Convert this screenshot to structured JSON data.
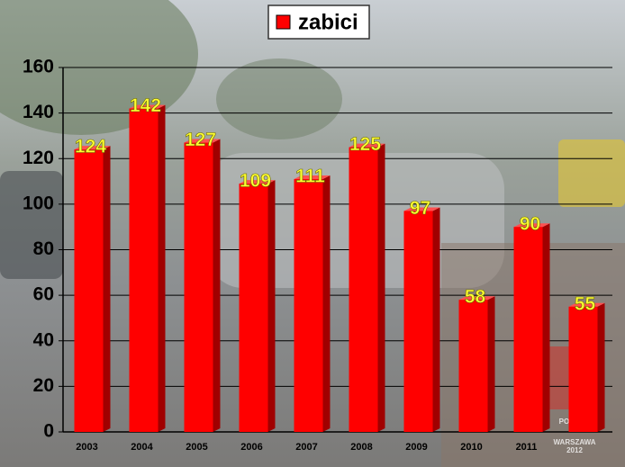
{
  "chart_data": {
    "type": "bar",
    "legend_label": "zabici",
    "categories": [
      "2003",
      "2004",
      "2005",
      "2006",
      "2007",
      "2008",
      "2009",
      "2010",
      "2011",
      null
    ],
    "values": [
      124,
      142,
      127,
      109,
      111,
      125,
      97,
      58,
      90,
      55
    ],
    "color": "#ff0000",
    "ylim": [
      0,
      160
    ],
    "yticks": [
      0,
      20,
      40,
      60,
      80,
      100,
      120,
      140,
      160
    ],
    "grid": true
  },
  "watermark": [
    "POLICJA",
    "WARSZAWA",
    "2012"
  ]
}
